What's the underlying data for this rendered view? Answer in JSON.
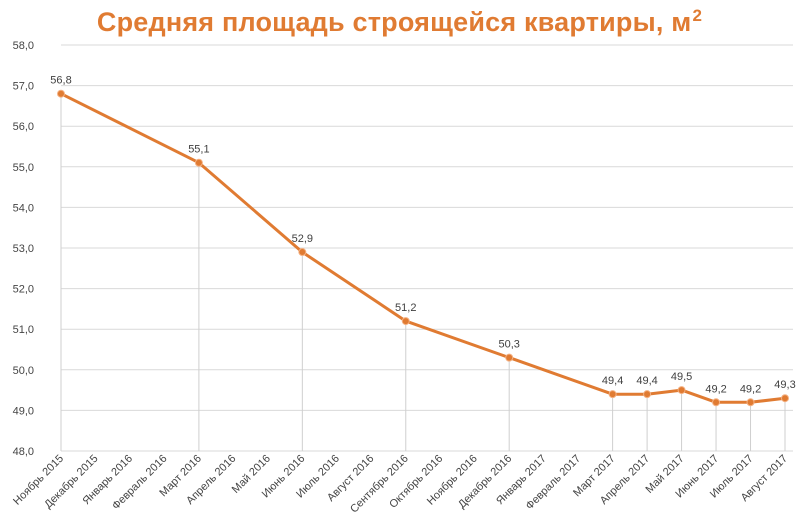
{
  "chart_data": {
    "type": "line",
    "title": "Средняя площадь строящейся квартиры, м",
    "title_superscript": "2",
    "categories": [
      "Ноябрь 2015",
      "Декабрь 2015",
      "Январь 2016",
      "Февраль 2016",
      "Март 2016",
      "Апрель 2016",
      "Май 2016",
      "Июнь 2016",
      "Июль 2016",
      "Август 2016",
      "Сентябрь 2016",
      "Октябрь 2016",
      "Ноябрь 2016",
      "Декабрь 2016",
      "Январь 2017",
      "Февраль 2017",
      "Март 2017",
      "Апрель 2017",
      "Май 2017",
      "Июнь 2017",
      "Июль 2017",
      "Август 2017"
    ],
    "series": [
      {
        "values": [
          56.8,
          null,
          null,
          null,
          55.1,
          null,
          null,
          52.9,
          null,
          null,
          51.2,
          null,
          null,
          50.3,
          null,
          null,
          49.4,
          49.4,
          49.5,
          49.2,
          49.2,
          49.3
        ],
        "data_labels": [
          "56,8",
          null,
          null,
          null,
          "55,1",
          null,
          null,
          "52,9",
          null,
          null,
          "51,2",
          null,
          null,
          "50,3",
          null,
          null,
          "49,4",
          "49,4",
          "49,5",
          "49,2",
          "49,2",
          "49,3"
        ],
        "color": "#e07b32"
      }
    ],
    "ylim": [
      48,
      58
    ],
    "yticks": [
      "48,0",
      "49,0",
      "50,0",
      "51,0",
      "52,0",
      "53,0",
      "54,0",
      "55,0",
      "56,0",
      "57,0",
      "58,0"
    ],
    "xlabel": "",
    "ylabel": "",
    "grid": true,
    "drop_lines": true,
    "gridline_color": "#d9d9d9"
  }
}
